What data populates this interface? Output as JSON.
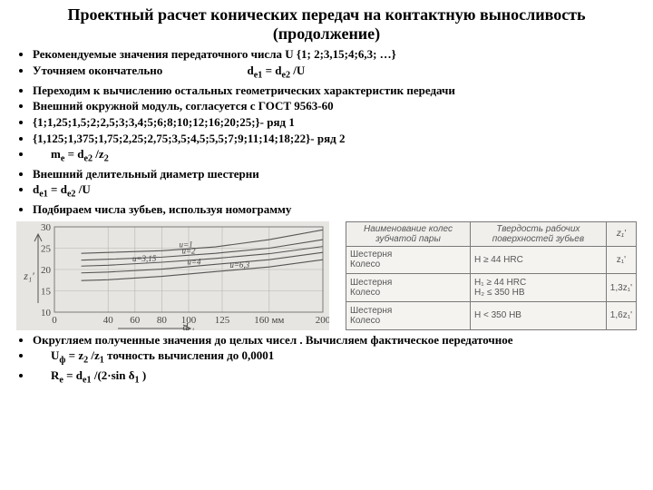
{
  "title": "Проектный расчет конических передач на контактную выносливость (продолжение)",
  "bullets": {
    "b1": "Рекомендуемые значения передаточного числа U {1; 2;3,15;4;6,3; …}",
    "b2a": "Уточняем окончательно",
    "b2b": "d",
    "b2c": "e1",
    "b2d": "= d",
    "b2e": "e2",
    "b2f": "/U",
    "b3": "Переходим к вычислению  остальных геометрических характеристик передачи",
    "b4": "Внешний окружной модуль, согласуется с ГОСТ 9563-60",
    "b5": "{1;1,25;1,5;2;2,5;3;3,4;5;6;8;10;12;16;20;25;}- ряд 1",
    "b6": "{1,125;1,375;1,75;2,25;2,75;3,5;4,5;5,5;7;9;11;14;18;22}- ряд 2",
    "b7a": "m",
    "b7b": "e",
    "b7c": "= d",
    "b7d": "e2",
    "b7e": "/z",
    "b7f": "2",
    "b8": "Внешний делительный диаметр шестерни",
    "b9a": "d",
    "b9b": "e1",
    "b9c": "= d",
    "b9d": "e2",
    "b9e": "/U",
    "b10": "Подбираем числа зубьев, используя номограмму",
    "b11": "Округляем полученные значения до целых чисел . Вычисляем фактическое передаточное",
    "b12a": "U",
    "b12b": "ф",
    "b12c": "= z",
    "b12d": "2",
    "b12e": "/z",
    "b12f": "1",
    "b12g": "   точность вычисления до 0,0001",
    "b13a": "R",
    "b13b": "e",
    "b13c": "= d",
    "b13d": "e1",
    "b13e": "/(2·sin δ",
    "b13f": "1",
    "b13g": ")"
  },
  "chart": {
    "type": "line",
    "xlim": [
      0,
      200
    ],
    "ylim": [
      10,
      30
    ],
    "xticks": [
      0,
      40,
      60,
      80,
      100,
      125,
      160,
      200
    ],
    "xtick_labels": [
      "0",
      "40",
      "60",
      "80",
      "100",
      "125",
      "160 мм",
      "200"
    ],
    "yticks": [
      10,
      15,
      20,
      25,
      30
    ],
    "xlabel": "de1",
    "ylabel": "z1'",
    "bg": "#e7e5e1",
    "grid_color": "#b7b5b0",
    "line_color": "#555555",
    "curves": [
      {
        "label": "u=1",
        "ylabel_x": 98,
        "pts": [
          [
            20,
            23.8
          ],
          [
            40,
            24.0
          ],
          [
            80,
            24.4
          ],
          [
            120,
            25.3
          ],
          [
            160,
            27.0
          ],
          [
            200,
            29.3
          ]
        ]
      },
      {
        "label": "u=2",
        "ylabel_x": 100,
        "pts": [
          [
            20,
            22.2
          ],
          [
            40,
            22.4
          ],
          [
            80,
            22.9
          ],
          [
            120,
            23.8
          ],
          [
            160,
            25.0
          ],
          [
            200,
            27.0
          ]
        ]
      },
      {
        "label": "u=3,15",
        "ylabel_x": 67,
        "pts": [
          [
            20,
            20.8
          ],
          [
            40,
            21.0
          ],
          [
            80,
            21.7
          ],
          [
            120,
            22.6
          ],
          [
            160,
            23.7
          ],
          [
            200,
            25.4
          ]
        ]
      },
      {
        "label": "u=4",
        "ylabel_x": 104,
        "pts": [
          [
            20,
            19.2
          ],
          [
            40,
            19.4
          ],
          [
            80,
            20.1
          ],
          [
            120,
            21.2
          ],
          [
            160,
            22.3
          ],
          [
            200,
            24.0
          ]
        ]
      },
      {
        "label": "u=6,3",
        "ylabel_x": 138,
        "pts": [
          [
            20,
            17.4
          ],
          [
            40,
            17.6
          ],
          [
            80,
            18.4
          ],
          [
            120,
            19.5
          ],
          [
            160,
            20.6
          ],
          [
            200,
            22.3
          ]
        ]
      }
    ]
  },
  "table": {
    "headers": [
      "Наименование колес зубчатой пары",
      "Твердость рабочих поверхностей зубьев",
      "z₁'"
    ],
    "rows": [
      {
        "c1": "Шестерня\nКолесо",
        "c2": "H ≥ 44 HRC",
        "c3": "z₁'"
      },
      {
        "c1": "Шестерня\nКолесо",
        "c2": "H₁ ≥ 44 HRC\nH₂ ≤ 350 HB",
        "c3": "1,3z₁'"
      },
      {
        "c1": "Шестерня\nКолесо",
        "c2": "H < 350 HB",
        "c3": "1,6z₁'"
      }
    ]
  }
}
